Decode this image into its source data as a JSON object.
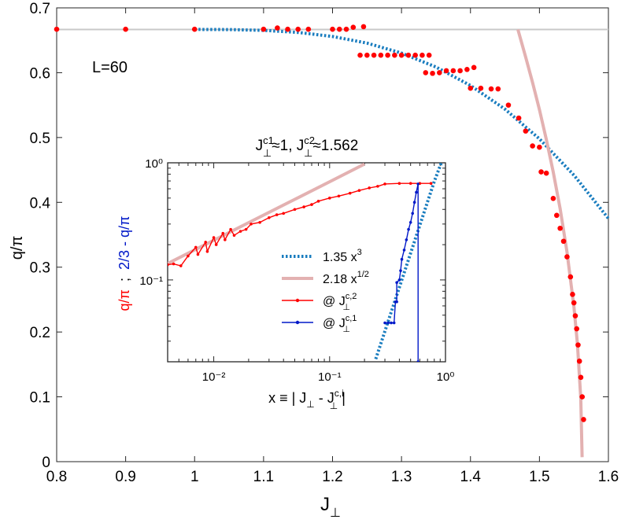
{
  "chart_data": [
    {
      "type": "scatter",
      "panel": "main",
      "xlabel": "J",
      "xlabel_sub": "⊥",
      "ylabel": "q/π",
      "xlim": [
        0.8,
        1.6
      ],
      "ylim": [
        0,
        0.7
      ],
      "xticks": [
        0.8,
        0.9,
        1,
        1.1,
        1.2,
        1.3,
        1.4,
        1.5,
        1.6
      ],
      "xtick_labels": [
        "0.8",
        "0.9",
        "1",
        "1.1",
        "1.2",
        "1.3",
        "1.4",
        "1.5",
        "1.6"
      ],
      "yticks": [
        0,
        0.1,
        0.2,
        0.3,
        0.4,
        0.5,
        0.6,
        0.7
      ],
      "ytick_labels": [
        "0",
        "0.1",
        "0.2",
        "0.3",
        "0.4",
        "0.5",
        "0.6",
        "0.7"
      ],
      "annotation": "L=60",
      "grid": false,
      "reference_line": {
        "y": 0.6667,
        "color": "#c8c8c8"
      },
      "series": [
        {
          "kind": "points",
          "color": "#ff0000",
          "x": [
            0.8,
            0.9,
            1.0,
            1.1,
            1.12,
            1.135,
            1.15,
            1.165,
            1.2,
            1.21,
            1.22,
            1.23,
            1.245,
            1.24,
            1.25,
            1.26,
            1.27,
            1.28,
            1.29,
            1.3,
            1.31,
            1.32,
            1.33,
            1.34,
            1.335,
            1.345,
            1.355,
            1.365,
            1.375,
            1.385,
            1.395,
            1.405,
            1.4,
            1.415,
            1.43,
            1.44,
            1.455,
            1.47,
            1.48,
            1.49,
            1.5,
            1.5025,
            1.51,
            1.52,
            1.525,
            1.53,
            1.535,
            1.54,
            1.545,
            1.548,
            1.55,
            1.552,
            1.554,
            1.556,
            1.558,
            1.56,
            1.562,
            1.564
          ],
          "y": [
            0.667,
            0.667,
            0.667,
            0.667,
            0.669,
            0.667,
            0.667,
            0.667,
            0.667,
            0.667,
            0.667,
            0.67,
            0.671,
            0.627,
            0.627,
            0.627,
            0.627,
            0.627,
            0.627,
            0.627,
            0.627,
            0.627,
            0.627,
            0.627,
            0.6,
            0.599,
            0.6,
            0.603,
            0.603,
            0.603,
            0.605,
            0.608,
            0.576,
            0.576,
            0.575,
            0.575,
            0.55,
            0.53,
            0.51,
            0.487,
            0.485,
            0.447,
            0.445,
            0.406,
            0.38,
            0.36,
            0.34,
            0.316,
            0.285,
            0.258,
            0.245,
            0.225,
            0.205,
            0.18,
            0.155,
            0.13,
            0.1,
            0.065
          ]
        },
        {
          "kind": "dotted-curve",
          "color": "#1a7dbf",
          "formula": "2/3 - 1.35 (J - 1)^3",
          "x": [
            1.0,
            1.05,
            1.1,
            1.15,
            1.2,
            1.25,
            1.3,
            1.35,
            1.4,
            1.45,
            1.5,
            1.55,
            1.6
          ],
          "y": [
            0.6667,
            0.6665,
            0.6653,
            0.6621,
            0.6559,
            0.6456,
            0.6302,
            0.6088,
            0.5803,
            0.5437,
            0.4979,
            0.442,
            0.3751
          ]
        },
        {
          "kind": "solid-curve",
          "color": "#e3b1b1",
          "formula": "2.18 (1.562 - J)^(1/2)",
          "x": [
            1.4688,
            1.48,
            1.49,
            1.5,
            1.51,
            1.52,
            1.53,
            1.54,
            1.55,
            1.555,
            1.56,
            1.5619
          ],
          "y": [
            0.6667,
            0.6244,
            0.585,
            0.5429,
            0.4971,
            0.4468,
            0.39,
            0.3233,
            0.2388,
            0.1824,
            0.0975,
            0.0069
          ]
        }
      ]
    },
    {
      "type": "line",
      "panel": "inset",
      "title": "J⊥c1≈1,  J⊥c2≈1.562",
      "xlabel": "x ≡ | J⊥ - J⊥c,i |",
      "xscale": "log",
      "yscale": "log",
      "xlim": [
        0.004,
        1.0
      ],
      "ylim": [
        0.02,
        1.0
      ],
      "xticks": [
        0.01,
        0.1,
        1
      ],
      "xtick_labels": [
        "10⁻²",
        "10⁻¹",
        "10⁰"
      ],
      "yticks": [
        0.1,
        1
      ],
      "ytick_labels": [
        "10⁻¹",
        "10⁰"
      ],
      "legend_position": "center",
      "series": [
        {
          "name": "1.35 x³",
          "color": "#1a7dbf",
          "style": "dotted",
          "x": [
            0.25,
            0.4,
            0.6,
            0.8,
            0.92
          ],
          "y": [
            0.0211,
            0.0864,
            0.2916,
            0.6912,
            1.0
          ]
        },
        {
          "name": "2.18 x¹ᐟ²",
          "color": "#e3b1b1",
          "style": "solid",
          "x": [
            0.004,
            0.01,
            0.05,
            0.1,
            0.2
          ],
          "y": [
            0.1379,
            0.218,
            0.4875,
            0.6894,
            0.975
          ]
        },
        {
          "name": "@ J⊥c,2",
          "color": "#ff0000",
          "style": "line-marker",
          "x": [
            0.004,
            0.0045,
            0.0052,
            0.006,
            0.007,
            0.0073,
            0.0085,
            0.0088,
            0.01,
            0.0105,
            0.012,
            0.0125,
            0.014,
            0.015,
            0.017,
            0.019,
            0.021,
            0.025,
            0.03,
            0.035,
            0.04,
            0.05,
            0.06,
            0.07,
            0.08,
            0.1,
            0.12,
            0.15,
            0.18,
            0.22,
            0.26,
            0.3,
            0.4,
            0.5,
            0.6,
            0.75
          ],
          "y": [
            0.135,
            0.137,
            0.132,
            0.16,
            0.19,
            0.165,
            0.21,
            0.175,
            0.23,
            0.2,
            0.25,
            0.22,
            0.27,
            0.24,
            0.26,
            0.27,
            0.3,
            0.31,
            0.34,
            0.36,
            0.37,
            0.4,
            0.42,
            0.44,
            0.47,
            0.5,
            0.52,
            0.55,
            0.58,
            0.61,
            0.63,
            0.66,
            0.667,
            0.667,
            0.667,
            0.667
          ]
        },
        {
          "name": "@ J⊥c,1",
          "color": "#0018c8",
          "style": "line-marker",
          "x": [
            0.3,
            0.32,
            0.34,
            0.36,
            0.37,
            0.38,
            0.38,
            0.4,
            0.41,
            0.42,
            0.44,
            0.46,
            0.48,
            0.5,
            0.52,
            0.54,
            0.56,
            0.58,
            0.58
          ],
          "y": [
            0.043,
            0.043,
            0.043,
            0.043,
            0.065,
            0.065,
            0.095,
            0.1,
            0.12,
            0.15,
            0.18,
            0.22,
            0.27,
            0.31,
            0.37,
            0.46,
            0.56,
            0.66,
            0.02
          ]
        }
      ]
    }
  ],
  "main": {
    "annotation": "L=60",
    "xlabel": "J",
    "xlabel_sub": "⊥",
    "ylabel": "q/π"
  },
  "inset": {
    "title_pre": "J",
    "title_sup1": "c1",
    "title_sub1": "⊥",
    "title_mid": "≈1,  J",
    "title_sup2": "c2",
    "title_sub2": "⊥",
    "title_post": "≈1.562",
    "ylabel_red": "q/π",
    "ylabel_sep": ";",
    "ylabel_blue": "2/3 - q/π",
    "xlabel_pre": "x ≡ | J",
    "xlabel_sub1": "⊥",
    "xlabel_mid": " - J",
    "xlabel_sup2": "c,i",
    "xlabel_sub2": "⊥",
    "xlabel_post": " |",
    "legend": [
      {
        "label": "1.35 x",
        "sup": "3",
        "color": "#1a7dbf",
        "style": "dotted"
      },
      {
        "label": "2.18 x",
        "sup": "1/2",
        "color": "#e3b1b1",
        "style": "solid"
      },
      {
        "label": "@ J",
        "sup": "c,2",
        "sub": "⊥",
        "color": "#ff0000",
        "style": "marker"
      },
      {
        "label": "@ J",
        "sup": "c,1",
        "sub": "⊥",
        "color": "#0018c8",
        "style": "marker"
      }
    ]
  },
  "colors": {
    "red_points": "#ff0000",
    "blue_dotted": "#1a7dbf",
    "pink_curve": "#e3b1b1",
    "blue_line": "#0018c8",
    "ref_line": "#c8c8c8"
  }
}
